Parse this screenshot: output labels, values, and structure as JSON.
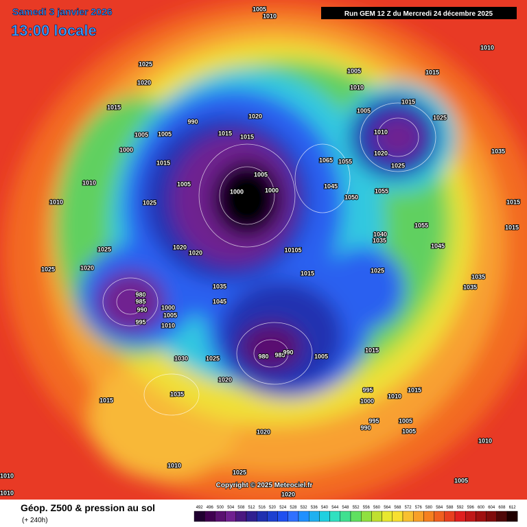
{
  "header": {
    "date": "Samedi 3 janvier 2026",
    "time": "13:00 locale",
    "run": "Run GEM 12 Z du Mercredi 24 décembre 2025"
  },
  "footer": {
    "title": "Géop. Z500 & pression au sol",
    "lead": "(+ 240h)",
    "copyright": "Copyright © 2025 Meteociel.fr"
  },
  "colorbar": {
    "ticks": [
      492,
      496,
      500,
      504,
      508,
      512,
      516,
      520,
      524,
      528,
      532,
      536,
      540,
      544,
      548,
      552,
      556,
      560,
      564,
      568,
      572,
      576,
      580,
      584,
      588,
      592,
      596,
      600,
      604,
      608,
      612
    ],
    "colors": [
      "#200030",
      "#400050",
      "#5a1070",
      "#702090",
      "#4b1880",
      "#302090",
      "#2030b0",
      "#1e40d0",
      "#2050f0",
      "#3070ff",
      "#2090ff",
      "#20b0f0",
      "#20d0e0",
      "#30e0c0",
      "#40e090",
      "#60e060",
      "#90e040",
      "#c0e030",
      "#e8e830",
      "#f8e030",
      "#f8c030",
      "#f8a028",
      "#f58020",
      "#f06020",
      "#e84020",
      "#e02020",
      "#c01818",
      "#a01010",
      "#800c0c",
      "#500808",
      "#200000"
    ]
  },
  "isobar_labels": [
    "1005",
    "1010",
    "1010",
    "1025",
    "1020",
    "1005",
    "1015",
    "1010",
    "1015",
    "1020",
    "1005",
    "1015",
    "1025",
    "1005",
    "1005",
    "990",
    "1015",
    "1015",
    "1010",
    "1000",
    "1020",
    "1035",
    "1015",
    "1065",
    "1055",
    "1025",
    "1010",
    "1005",
    "1000",
    "1005",
    "1000",
    "1045",
    "1055",
    "1010",
    "1025",
    "1050",
    "1015",
    "1055",
    "1015",
    "1040",
    "1035",
    "1020",
    "1025",
    "1020",
    "10105",
    "1045",
    "1020",
    "1025",
    "1025",
    "1015",
    "1035",
    "1035",
    "1035",
    "980",
    "985",
    "1045",
    "990",
    "1000",
    "1005",
    "995",
    "1010",
    "1015",
    "1030",
    "1025",
    "980",
    "985",
    "990",
    "1005",
    "1020",
    "995",
    "1015",
    "1035",
    "1010",
    "1015",
    "1000",
    "995",
    "990",
    "1005",
    "1005",
    "1020",
    "1010",
    "1010",
    "1025",
    "1010",
    "1005",
    "1010",
    "1020"
  ]
}
